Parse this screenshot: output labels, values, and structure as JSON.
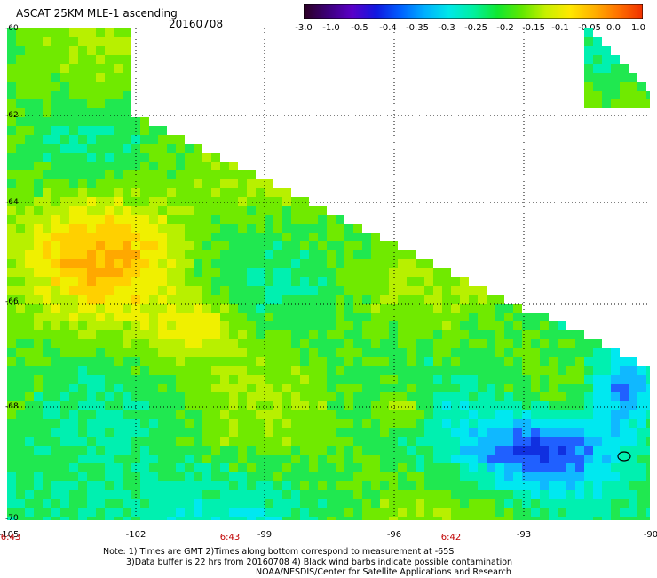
{
  "header": {
    "title": "ASCAT 25KM MLE-1 ascending",
    "date": "20160708"
  },
  "colorbar": {
    "tick_labels": [
      "-3.0",
      "-1.0",
      "-0.5",
      "-0.4",
      "-0.35",
      "-0.3",
      "-0.25",
      "-0.2",
      "-0.15",
      "-0.1",
      "-0.05",
      "0.0",
      "1.0"
    ],
    "colors": [
      "#2b0022",
      "#3c007a",
      "#5a00c8",
      "#1018e0",
      "#0060ff",
      "#00b0ff",
      "#00e8e8",
      "#00f0a0",
      "#10e830",
      "#60e800",
      "#c8f000",
      "#ffe800",
      "#ffb000",
      "#ff7000",
      "#f03000"
    ]
  },
  "map": {
    "lat_labels": [
      "-60",
      "-62",
      "-64",
      "-66",
      "-68",
      "-70"
    ],
    "lon_labels": [
      "-105",
      "-102",
      "-99",
      "-96",
      "-93",
      "-90"
    ],
    "pass_times": [
      "6:43",
      "6:43",
      "6:42"
    ],
    "contamination_symbol": "wind-barb-ellipse-icon"
  },
  "notes": {
    "line1": "Note: 1) Times are GMT 2)Times along bottom correspond to measurement at -65S",
    "line2": "3)Data buffer is 22 hrs from 20160708 4) Black wind barbs indicate possible contamination",
    "line3": "NOAA/NESDIS/Center for Satellite Applications and Research"
  }
}
